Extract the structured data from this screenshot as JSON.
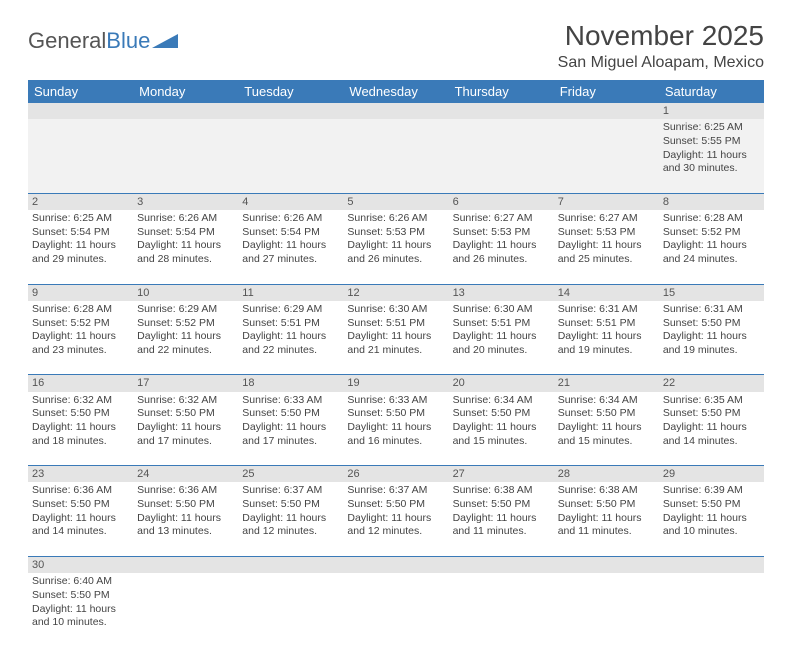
{
  "logo": {
    "first": "General",
    "second": "Blue"
  },
  "title": "November 2025",
  "location": "San Miguel Aloapam, Mexico",
  "colors": {
    "header_bg": "#3a7ab8",
    "daynum_bg": "#e4e4e4",
    "row_border": "#3a7ab8"
  },
  "day_headers": [
    "Sunday",
    "Monday",
    "Tuesday",
    "Wednesday",
    "Thursday",
    "Friday",
    "Saturday"
  ],
  "weeks": [
    {
      "nums": [
        "",
        "",
        "",
        "",
        "",
        "",
        "1"
      ],
      "cells": [
        null,
        null,
        null,
        null,
        null,
        null,
        {
          "sunrise": "Sunrise: 6:25 AM",
          "sunset": "Sunset: 5:55 PM",
          "day1": "Daylight: 11 hours",
          "day2": "and 30 minutes."
        }
      ]
    },
    {
      "nums": [
        "2",
        "3",
        "4",
        "5",
        "6",
        "7",
        "8"
      ],
      "cells": [
        {
          "sunrise": "Sunrise: 6:25 AM",
          "sunset": "Sunset: 5:54 PM",
          "day1": "Daylight: 11 hours",
          "day2": "and 29 minutes."
        },
        {
          "sunrise": "Sunrise: 6:26 AM",
          "sunset": "Sunset: 5:54 PM",
          "day1": "Daylight: 11 hours",
          "day2": "and 28 minutes."
        },
        {
          "sunrise": "Sunrise: 6:26 AM",
          "sunset": "Sunset: 5:54 PM",
          "day1": "Daylight: 11 hours",
          "day2": "and 27 minutes."
        },
        {
          "sunrise": "Sunrise: 6:26 AM",
          "sunset": "Sunset: 5:53 PM",
          "day1": "Daylight: 11 hours",
          "day2": "and 26 minutes."
        },
        {
          "sunrise": "Sunrise: 6:27 AM",
          "sunset": "Sunset: 5:53 PM",
          "day1": "Daylight: 11 hours",
          "day2": "and 26 minutes."
        },
        {
          "sunrise": "Sunrise: 6:27 AM",
          "sunset": "Sunset: 5:53 PM",
          "day1": "Daylight: 11 hours",
          "day2": "and 25 minutes."
        },
        {
          "sunrise": "Sunrise: 6:28 AM",
          "sunset": "Sunset: 5:52 PM",
          "day1": "Daylight: 11 hours",
          "day2": "and 24 minutes."
        }
      ]
    },
    {
      "nums": [
        "9",
        "10",
        "11",
        "12",
        "13",
        "14",
        "15"
      ],
      "cells": [
        {
          "sunrise": "Sunrise: 6:28 AM",
          "sunset": "Sunset: 5:52 PM",
          "day1": "Daylight: 11 hours",
          "day2": "and 23 minutes."
        },
        {
          "sunrise": "Sunrise: 6:29 AM",
          "sunset": "Sunset: 5:52 PM",
          "day1": "Daylight: 11 hours",
          "day2": "and 22 minutes."
        },
        {
          "sunrise": "Sunrise: 6:29 AM",
          "sunset": "Sunset: 5:51 PM",
          "day1": "Daylight: 11 hours",
          "day2": "and 22 minutes."
        },
        {
          "sunrise": "Sunrise: 6:30 AM",
          "sunset": "Sunset: 5:51 PM",
          "day1": "Daylight: 11 hours",
          "day2": "and 21 minutes."
        },
        {
          "sunrise": "Sunrise: 6:30 AM",
          "sunset": "Sunset: 5:51 PM",
          "day1": "Daylight: 11 hours",
          "day2": "and 20 minutes."
        },
        {
          "sunrise": "Sunrise: 6:31 AM",
          "sunset": "Sunset: 5:51 PM",
          "day1": "Daylight: 11 hours",
          "day2": "and 19 minutes."
        },
        {
          "sunrise": "Sunrise: 6:31 AM",
          "sunset": "Sunset: 5:50 PM",
          "day1": "Daylight: 11 hours",
          "day2": "and 19 minutes."
        }
      ]
    },
    {
      "nums": [
        "16",
        "17",
        "18",
        "19",
        "20",
        "21",
        "22"
      ],
      "cells": [
        {
          "sunrise": "Sunrise: 6:32 AM",
          "sunset": "Sunset: 5:50 PM",
          "day1": "Daylight: 11 hours",
          "day2": "and 18 minutes."
        },
        {
          "sunrise": "Sunrise: 6:32 AM",
          "sunset": "Sunset: 5:50 PM",
          "day1": "Daylight: 11 hours",
          "day2": "and 17 minutes."
        },
        {
          "sunrise": "Sunrise: 6:33 AM",
          "sunset": "Sunset: 5:50 PM",
          "day1": "Daylight: 11 hours",
          "day2": "and 17 minutes."
        },
        {
          "sunrise": "Sunrise: 6:33 AM",
          "sunset": "Sunset: 5:50 PM",
          "day1": "Daylight: 11 hours",
          "day2": "and 16 minutes."
        },
        {
          "sunrise": "Sunrise: 6:34 AM",
          "sunset": "Sunset: 5:50 PM",
          "day1": "Daylight: 11 hours",
          "day2": "and 15 minutes."
        },
        {
          "sunrise": "Sunrise: 6:34 AM",
          "sunset": "Sunset: 5:50 PM",
          "day1": "Daylight: 11 hours",
          "day2": "and 15 minutes."
        },
        {
          "sunrise": "Sunrise: 6:35 AM",
          "sunset": "Sunset: 5:50 PM",
          "day1": "Daylight: 11 hours",
          "day2": "and 14 minutes."
        }
      ]
    },
    {
      "nums": [
        "23",
        "24",
        "25",
        "26",
        "27",
        "28",
        "29"
      ],
      "cells": [
        {
          "sunrise": "Sunrise: 6:36 AM",
          "sunset": "Sunset: 5:50 PM",
          "day1": "Daylight: 11 hours",
          "day2": "and 14 minutes."
        },
        {
          "sunrise": "Sunrise: 6:36 AM",
          "sunset": "Sunset: 5:50 PM",
          "day1": "Daylight: 11 hours",
          "day2": "and 13 minutes."
        },
        {
          "sunrise": "Sunrise: 6:37 AM",
          "sunset": "Sunset: 5:50 PM",
          "day1": "Daylight: 11 hours",
          "day2": "and 12 minutes."
        },
        {
          "sunrise": "Sunrise: 6:37 AM",
          "sunset": "Sunset: 5:50 PM",
          "day1": "Daylight: 11 hours",
          "day2": "and 12 minutes."
        },
        {
          "sunrise": "Sunrise: 6:38 AM",
          "sunset": "Sunset: 5:50 PM",
          "day1": "Daylight: 11 hours",
          "day2": "and 11 minutes."
        },
        {
          "sunrise": "Sunrise: 6:38 AM",
          "sunset": "Sunset: 5:50 PM",
          "day1": "Daylight: 11 hours",
          "day2": "and 11 minutes."
        },
        {
          "sunrise": "Sunrise: 6:39 AM",
          "sunset": "Sunset: 5:50 PM",
          "day1": "Daylight: 11 hours",
          "day2": "and 10 minutes."
        }
      ]
    },
    {
      "nums": [
        "30",
        "",
        "",
        "",
        "",
        "",
        ""
      ],
      "cells": [
        {
          "sunrise": "Sunrise: 6:40 AM",
          "sunset": "Sunset: 5:50 PM",
          "day1": "Daylight: 11 hours",
          "day2": "and 10 minutes."
        },
        null,
        null,
        null,
        null,
        null,
        null
      ]
    }
  ]
}
